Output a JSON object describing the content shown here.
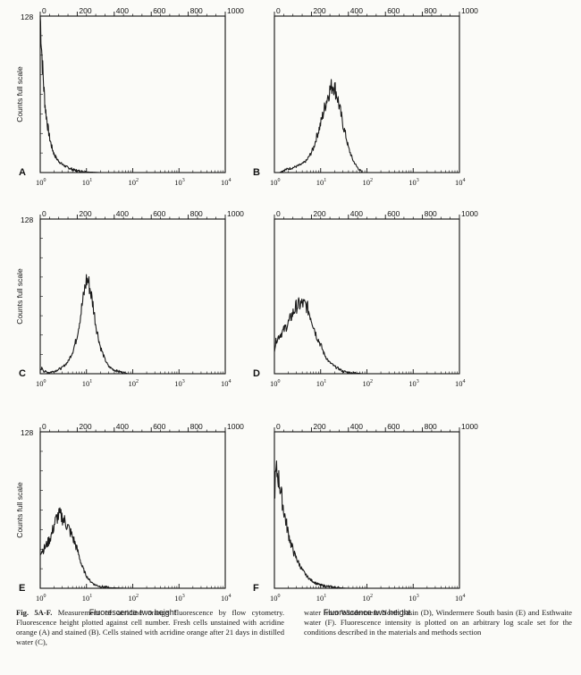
{
  "figure": {
    "caption_label": "Fig. 5A-F.",
    "caption_left": "Measurement of acridine orange fluorescence by flow cytometry. Fluorescence height plotted against cell number. Fresh cells unstained with acridine orange (A) and stained (B). Cells stained with acridine orange after 21 days in distilled water (C),",
    "caption_right": "water from Windermere North basin (D), Windermere South basin (E) and Esthwaite water (F). Fluorescence intensity is plotted on an arbitrary log scale set for the conditions described in the materials and methods section",
    "bottom_xlabel": "Fluorescence two height",
    "ylabel": "Counts full scale",
    "y_max_label": "128",
    "top_ticks": [
      "0",
      "200",
      "400",
      "600",
      "800",
      "1000"
    ],
    "bottom_ticks": [
      {
        "base": "10",
        "exp": "0"
      },
      {
        "base": "10",
        "exp": "1"
      },
      {
        "base": "10",
        "exp": "2"
      },
      {
        "base": "10",
        "exp": "3"
      },
      {
        "base": "10",
        "exp": "4"
      }
    ]
  },
  "colors": {
    "background": "#fbfbf8",
    "ink": "#111111",
    "trace": "#1a1a1a"
  },
  "chart_data": [
    {
      "type": "area",
      "panel": "A",
      "xscale": "log",
      "xlim": [
        1,
        10000
      ],
      "ylim": [
        0,
        128
      ],
      "x2lim": [
        0,
        1000
      ],
      "x2ticks": [
        0,
        200,
        400,
        600,
        800,
        1000
      ],
      "ylabel": "Counts full scale",
      "xlabel": "",
      "x": [
        1.0,
        1.05,
        1.1,
        1.15,
        1.2,
        1.3,
        1.45,
        1.6,
        1.8,
        2.0,
        2.3,
        2.7,
        3.2,
        4.0,
        5.5,
        7.5,
        10,
        20
      ],
      "y": [
        128,
        110,
        92,
        80,
        68,
        52,
        38,
        28,
        20,
        15,
        11,
        8,
        6,
        4,
        2,
        1,
        0.5,
        0
      ]
    },
    {
      "type": "area",
      "panel": "B",
      "xscale": "log",
      "xlim": [
        1,
        10000
      ],
      "ylim": [
        0,
        128
      ],
      "x2lim": [
        0,
        1000
      ],
      "x2ticks": [
        0,
        200,
        400,
        600,
        800,
        1000
      ],
      "ylabel": "",
      "xlabel": "",
      "x": [
        1.3,
        1.6,
        2,
        2.5,
        3,
        4,
        5,
        6,
        7,
        8,
        10,
        12,
        14,
        16,
        18,
        20,
        23,
        26,
        30,
        35,
        40,
        50,
        60,
        70,
        80
      ],
      "y": [
        0,
        2,
        3,
        4,
        5,
        7,
        10,
        15,
        20,
        28,
        40,
        52,
        62,
        68,
        72,
        70,
        62,
        52,
        40,
        30,
        20,
        10,
        5,
        2,
        0
      ]
    },
    {
      "type": "area",
      "panel": "C",
      "xscale": "log",
      "xlim": [
        1,
        10000
      ],
      "ylim": [
        0,
        128
      ],
      "x2lim": [
        0,
        1000
      ],
      "x2ticks": [
        0,
        200,
        400,
        600,
        800,
        1000
      ],
      "ylabel": "Counts full scale",
      "xlabel": "",
      "x": [
        1.0,
        1.1,
        1.2,
        1.5,
        2,
        3,
        4,
        5,
        6,
        7,
        8,
        9,
        10,
        11,
        12,
        14,
        16,
        20,
        25,
        30,
        40,
        60,
        80
      ],
      "y": [
        3,
        5,
        2,
        1,
        2,
        5,
        10,
        18,
        28,
        42,
        56,
        68,
        78,
        76,
        70,
        56,
        40,
        22,
        12,
        6,
        3,
        1,
        0
      ]
    },
    {
      "type": "area",
      "panel": "D",
      "xscale": "log",
      "xlim": [
        1,
        10000
      ],
      "ylim": [
        0,
        128
      ],
      "x2lim": [
        0,
        1000
      ],
      "x2ticks": [
        0,
        200,
        400,
        600,
        800,
        1000
      ],
      "ylabel": "",
      "xlabel": "",
      "x": [
        1.0,
        1.1,
        1.3,
        1.6,
        2,
        2.5,
        3,
        4,
        5,
        6,
        7,
        8,
        10,
        12,
        15,
        20,
        25,
        30,
        40,
        60,
        80
      ],
      "y": [
        20,
        28,
        32,
        36,
        42,
        50,
        56,
        58,
        56,
        48,
        40,
        32,
        24,
        16,
        10,
        6,
        4,
        2,
        1,
        0.5,
        0
      ]
    },
    {
      "type": "area",
      "panel": "E",
      "xscale": "log",
      "xlim": [
        1,
        10000
      ],
      "ylim": [
        0,
        128
      ],
      "x2lim": [
        0,
        1000
      ],
      "x2ticks": [
        0,
        200,
        400,
        600,
        800,
        1000
      ],
      "ylabel": "Counts full scale",
      "xlabel": "Fluorescence two height",
      "x": [
        1.0,
        1.2,
        1.5,
        1.8,
        2,
        2.3,
        2.6,
        3,
        3.5,
        4,
        5,
        6,
        7,
        8,
        10,
        12,
        15,
        20,
        30,
        40,
        60,
        80
      ],
      "y": [
        30,
        32,
        38,
        45,
        52,
        58,
        60,
        58,
        54,
        50,
        42,
        34,
        26,
        18,
        10,
        6,
        3,
        1.5,
        0.5,
        0.3,
        0.1,
        0
      ]
    },
    {
      "type": "area",
      "panel": "F",
      "xscale": "log",
      "xlim": [
        1,
        10000
      ],
      "ylim": [
        0,
        128
      ],
      "x2lim": [
        0,
        1000
      ],
      "x2ticks": [
        0,
        200,
        400,
        600,
        800,
        1000
      ],
      "ylabel": "",
      "xlabel": "Fluorescence two height",
      "x": [
        1.0,
        1.05,
        1.1,
        1.2,
        1.3,
        1.5,
        1.7,
        2,
        2.3,
        2.7,
        3.2,
        4,
        5,
        6,
        8,
        10,
        14,
        20,
        30,
        40
      ],
      "y": [
        75,
        90,
        96,
        92,
        85,
        70,
        58,
        45,
        36,
        28,
        22,
        15,
        10,
        7,
        4,
        2.5,
        1.5,
        0.8,
        0.2,
        0
      ]
    }
  ]
}
